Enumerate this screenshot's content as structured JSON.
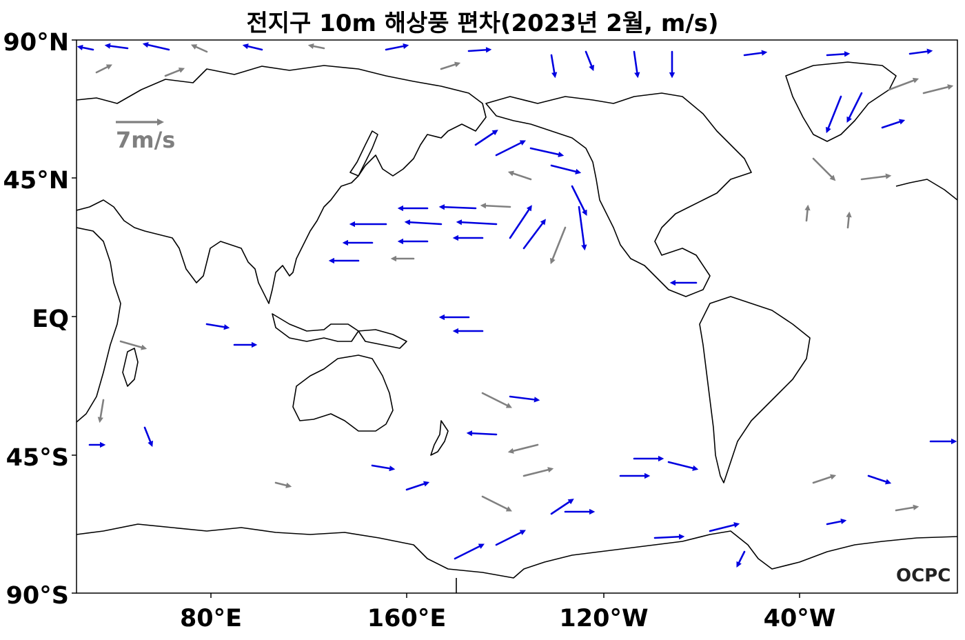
{
  "title": "전지구 10m 해상풍 편차(2023년 2월, m/s)",
  "axes": {
    "y_ticks": [
      "90°N",
      "45°N",
      "EQ",
      "45°S",
      "90°S"
    ],
    "x_ticks": [
      "80°E",
      "160°E",
      "120°W",
      "40°W"
    ]
  },
  "legend": {
    "reference_label": "7m/s"
  },
  "logo": "OCPC",
  "colors": {
    "strong_anomaly": "#0000e0",
    "weak_anomaly": "#808080",
    "coastline": "#000000"
  },
  "chart_data": {
    "type": "vector-field",
    "title": "전지구 10m 해상풍 편차(2023년 2월, m/s)",
    "xlim": [
      "27°E",
      "387°E"
    ],
    "ylim": [
      -90,
      90
    ],
    "x_ticks_deg": [
      80,
      160,
      240,
      320
    ],
    "y_ticks_deg": [
      90,
      45,
      0,
      -45,
      -90
    ],
    "reference_vector_ms": 7
  }
}
